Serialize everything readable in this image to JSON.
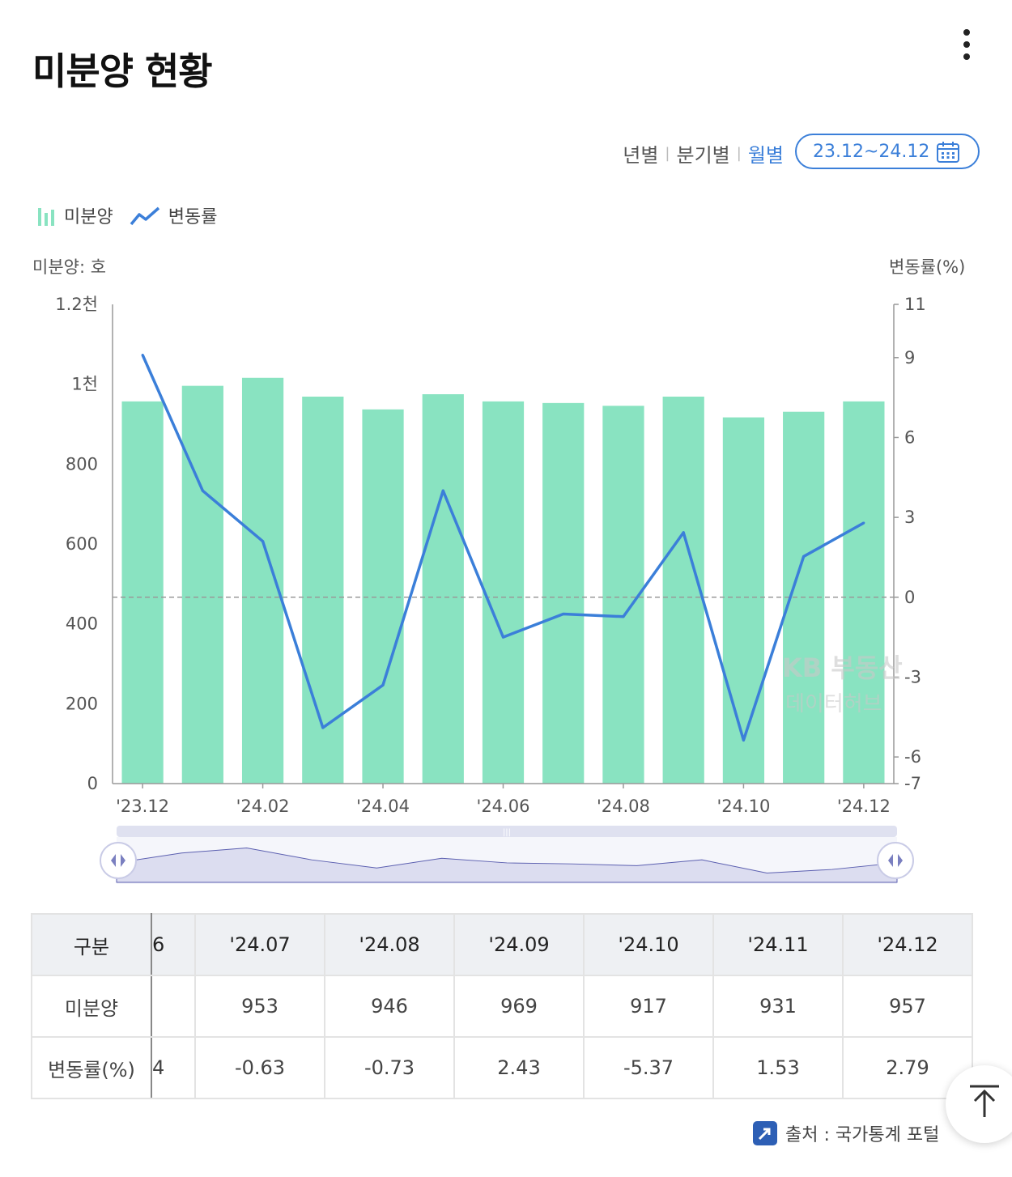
{
  "header": {
    "title": "미분양 현황"
  },
  "period_tabs": [
    {
      "label": "년별",
      "active": false
    },
    {
      "label": "분기별",
      "active": false
    },
    {
      "label": "월별",
      "active": true
    }
  ],
  "date_range": {
    "label": "23.12~24.12"
  },
  "legend": {
    "bar": "미분양",
    "line": "변동률"
  },
  "axis_titles": {
    "left": "미분양: 호",
    "right": "변동률(%)"
  },
  "watermark": {
    "line1": "KB 부동산",
    "line2": "데이터허브"
  },
  "colors": {
    "bar": "#89e3c1",
    "line": "#3b7fd9",
    "accent": "#3b7fd9"
  },
  "chart_data": {
    "type": "bar",
    "categories": [
      "'23.12",
      "'24.01",
      "'24.02",
      "'24.03",
      "'24.04",
      "'24.05",
      "'24.06",
      "'24.07",
      "'24.08",
      "'24.09",
      "'24.10",
      "'24.11",
      "'24.12"
    ],
    "xticklabels": [
      "'23.12",
      "'24.02",
      "'24.04",
      "'24.06",
      "'24.08",
      "'24.10",
      "'24.12"
    ],
    "series": [
      {
        "name": "미분양",
        "type": "bar",
        "axis": "left",
        "values": [
          957,
          996,
          1016,
          969,
          937,
          975,
          957,
          953,
          946,
          969,
          917,
          931,
          957
        ]
      },
      {
        "name": "변동률",
        "type": "line",
        "axis": "right",
        "values": [
          9.1,
          4.0,
          2.1,
          -4.9,
          -3.3,
          4.0,
          -1.5,
          -0.63,
          -0.73,
          2.43,
          -5.37,
          1.53,
          2.79
        ]
      }
    ],
    "y_left": {
      "ylim": [
        0,
        1200
      ],
      "ticks": [
        0,
        200,
        400,
        600,
        800,
        1000,
        1200
      ],
      "ticklabels": [
        "0",
        "200",
        "400",
        "600",
        "800",
        "1천",
        "1.2천"
      ]
    },
    "y_right": {
      "ylim": [
        -7,
        11
      ],
      "ticks": [
        -7,
        -6,
        -3,
        0,
        3,
        6,
        9,
        11
      ],
      "ticklabels": [
        "-7",
        "-6",
        "-3",
        "0",
        "3",
        "6",
        "9",
        "11"
      ]
    },
    "zero_line": true
  },
  "table": {
    "header_label": "구분",
    "stub_header": "6",
    "columns": [
      "'24.07",
      "'24.08",
      "'24.09",
      "'24.10",
      "'24.11",
      "'24.12"
    ],
    "rows": [
      {
        "label": "미분양",
        "stub": "",
        "values": [
          "953",
          "946",
          "969",
          "917",
          "931",
          "957"
        ]
      },
      {
        "label": "변동률(%)",
        "stub": "4",
        "values": [
          "-0.63",
          "-0.73",
          "2.43",
          "-5.37",
          "1.53",
          "2.79"
        ]
      }
    ]
  },
  "source": {
    "label": "출처 : 국가통계 포털"
  }
}
